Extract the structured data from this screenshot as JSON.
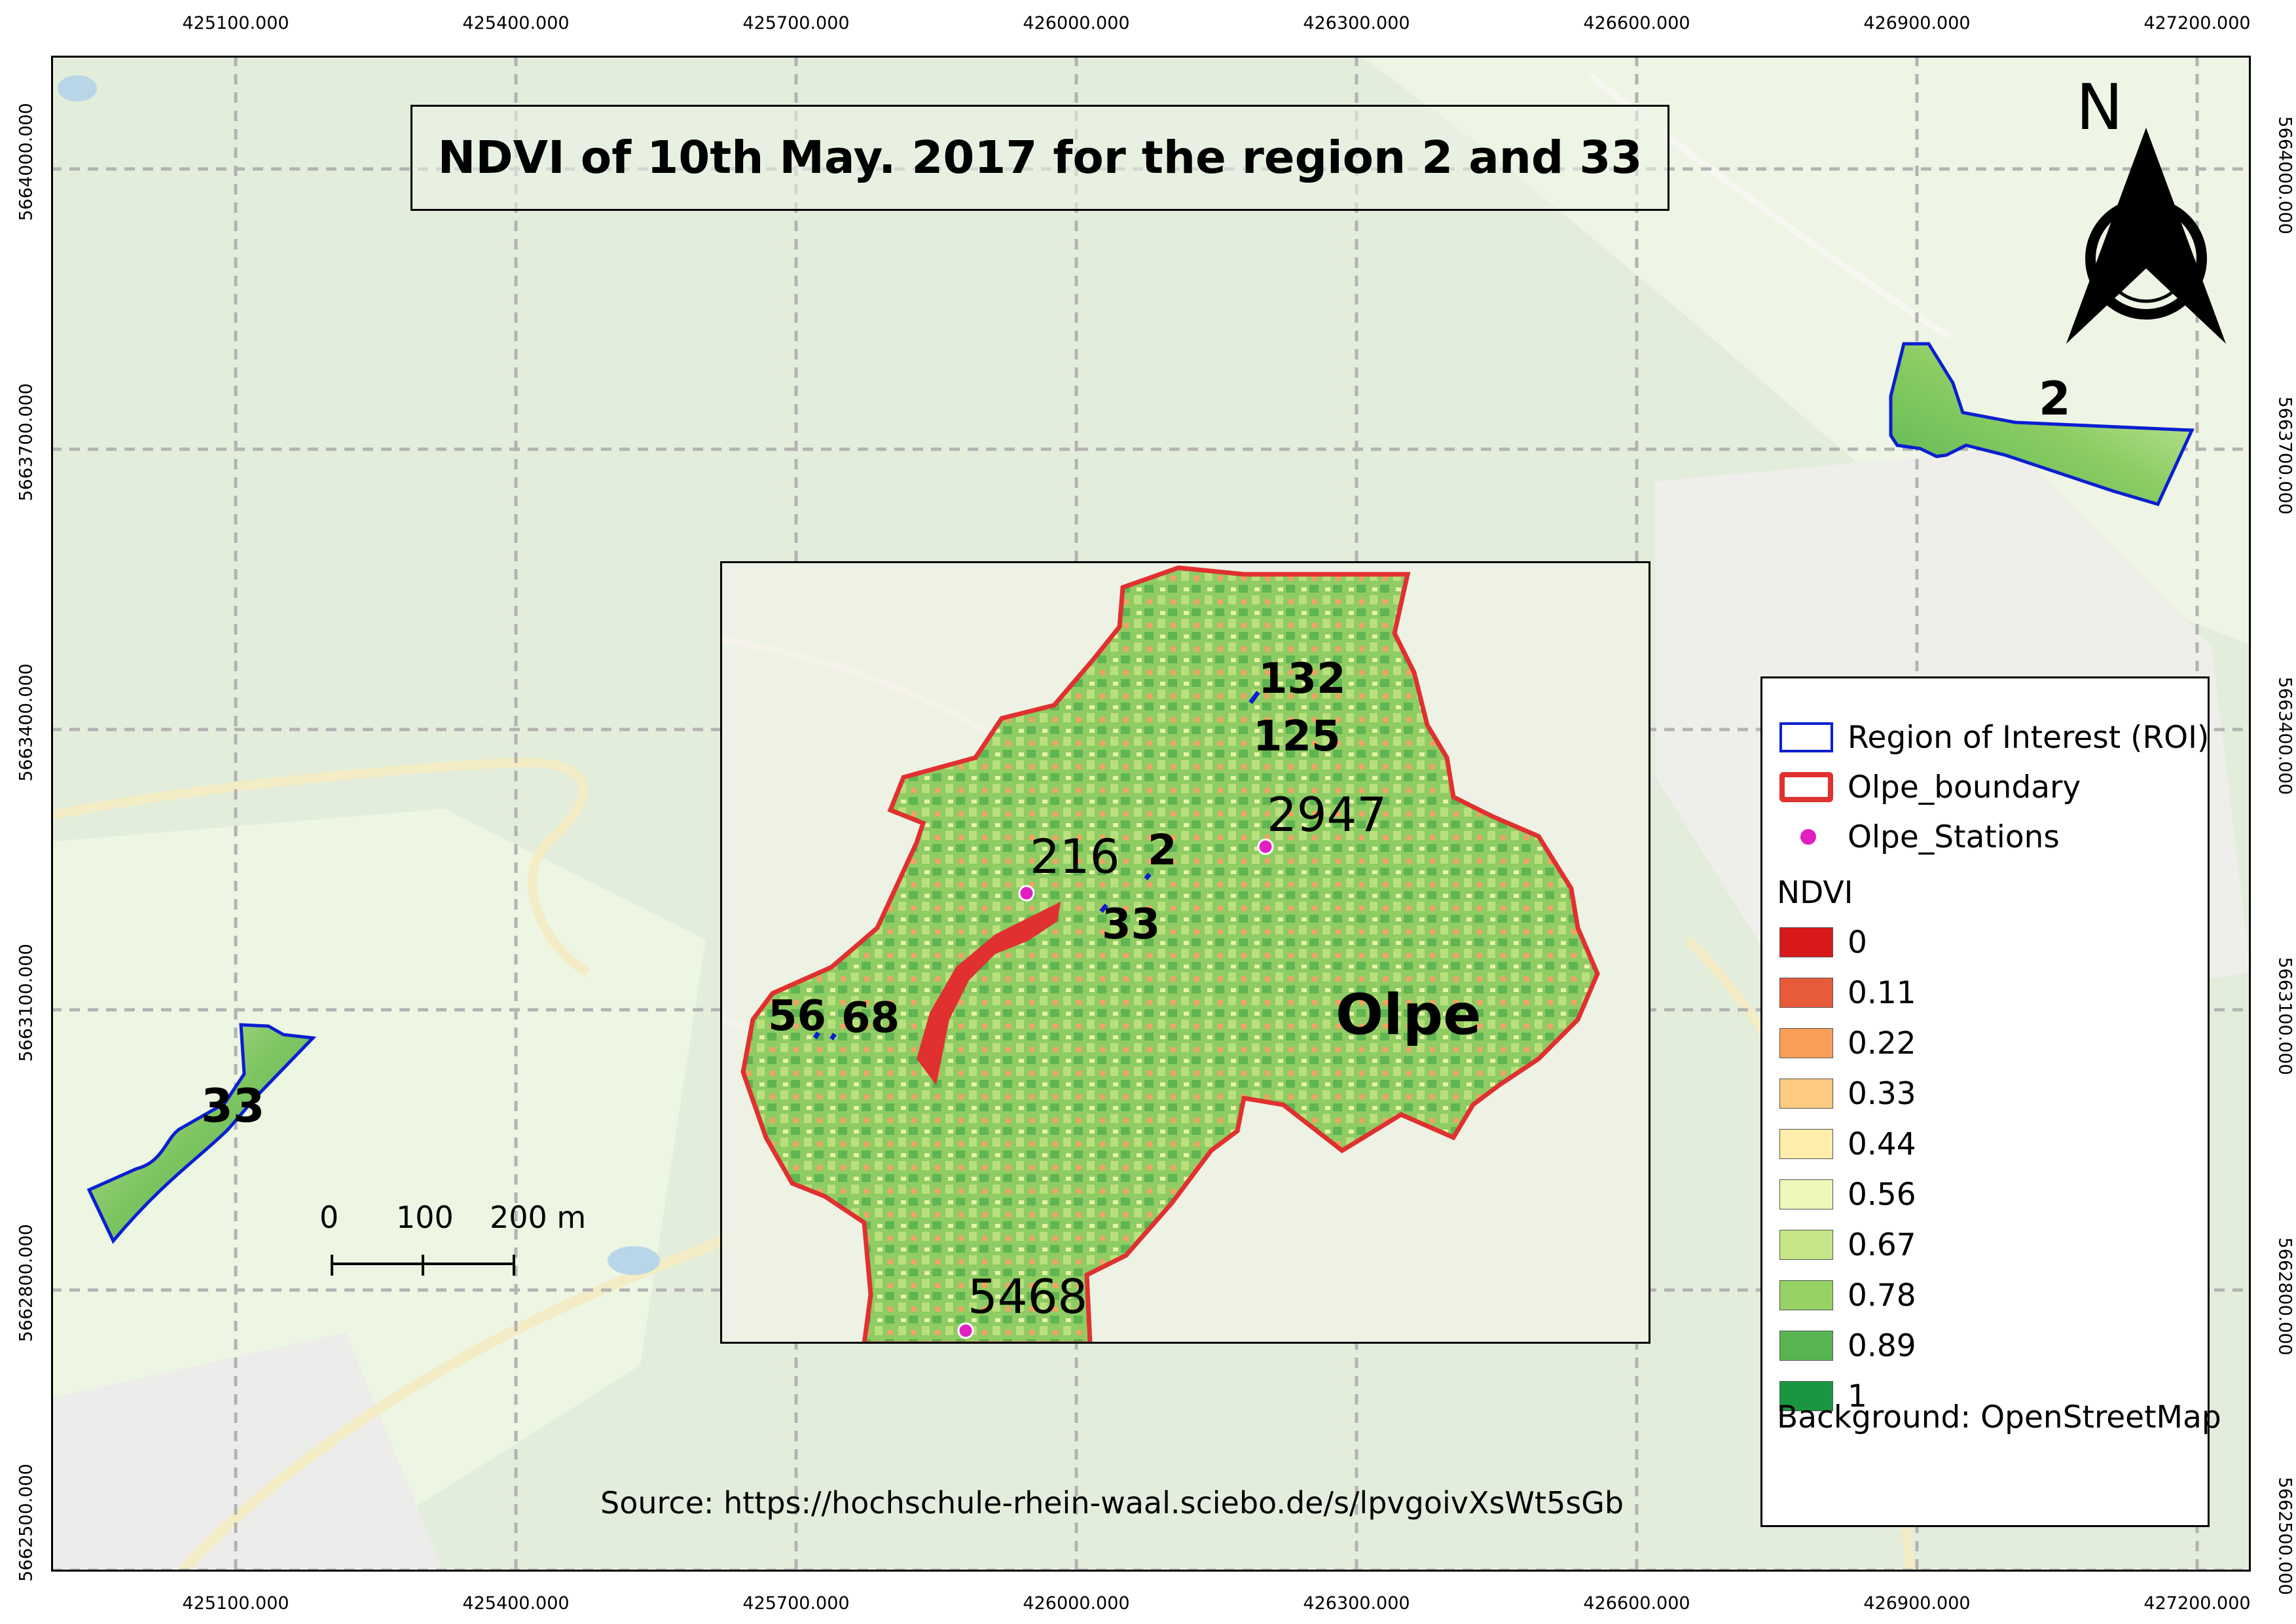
{
  "title": "NDVI of 10th May. 2017 for the region 2 and 33",
  "x_ticks": [
    "425100.000",
    "425400.000",
    "425700.000",
    "426000.000",
    "426300.000",
    "426600.000",
    "426900.000",
    "427200.000"
  ],
  "y_ticks": [
    "5664000.000",
    "5663700.000",
    "5663400.000",
    "5663100.000",
    "5662800.000",
    "5662500.000"
  ],
  "north_arrow": {
    "label": "N"
  },
  "regions": [
    {
      "label": "2"
    },
    {
      "label": "33"
    }
  ],
  "inset": {
    "area_label": "Olpe",
    "roi_labels": [
      "132",
      "125",
      "2",
      "33",
      "56",
      "68"
    ],
    "stations": [
      "216",
      "2947",
      "5468"
    ]
  },
  "legend": {
    "roi": "Region of Interest (ROI)",
    "boundary": "Olpe_boundary",
    "stations": "Olpe_Stations",
    "ndvi_title": "NDVI",
    "ndvi_classes": [
      {
        "label": "0",
        "color": "#d7191c"
      },
      {
        "label": "0.11",
        "color": "#e85b3a"
      },
      {
        "label": "0.22",
        "color": "#f99e59"
      },
      {
        "label": "0.33",
        "color": "#fec980"
      },
      {
        "label": "0.44",
        "color": "#ffedaa"
      },
      {
        "label": "0.56",
        "color": "#ecf7b9"
      },
      {
        "label": "0.67",
        "color": "#c4e687"
      },
      {
        "label": "0.78",
        "color": "#96d265"
      },
      {
        "label": "0.89",
        "color": "#58b453"
      },
      {
        "label": "1",
        "color": "#1a9641"
      }
    ],
    "background": "Background: OpenStreetMap"
  },
  "scale_bar": {
    "labels": [
      "0",
      "100",
      "200 m"
    ]
  },
  "source": "Source: https://hochschule-rhein-waal.sciebo.de/s/lpvgoivXsWt5sGb",
  "colors": {
    "roi_outline": "#0a1fd0",
    "boundary": "#e03030",
    "station": "#e020c0"
  }
}
